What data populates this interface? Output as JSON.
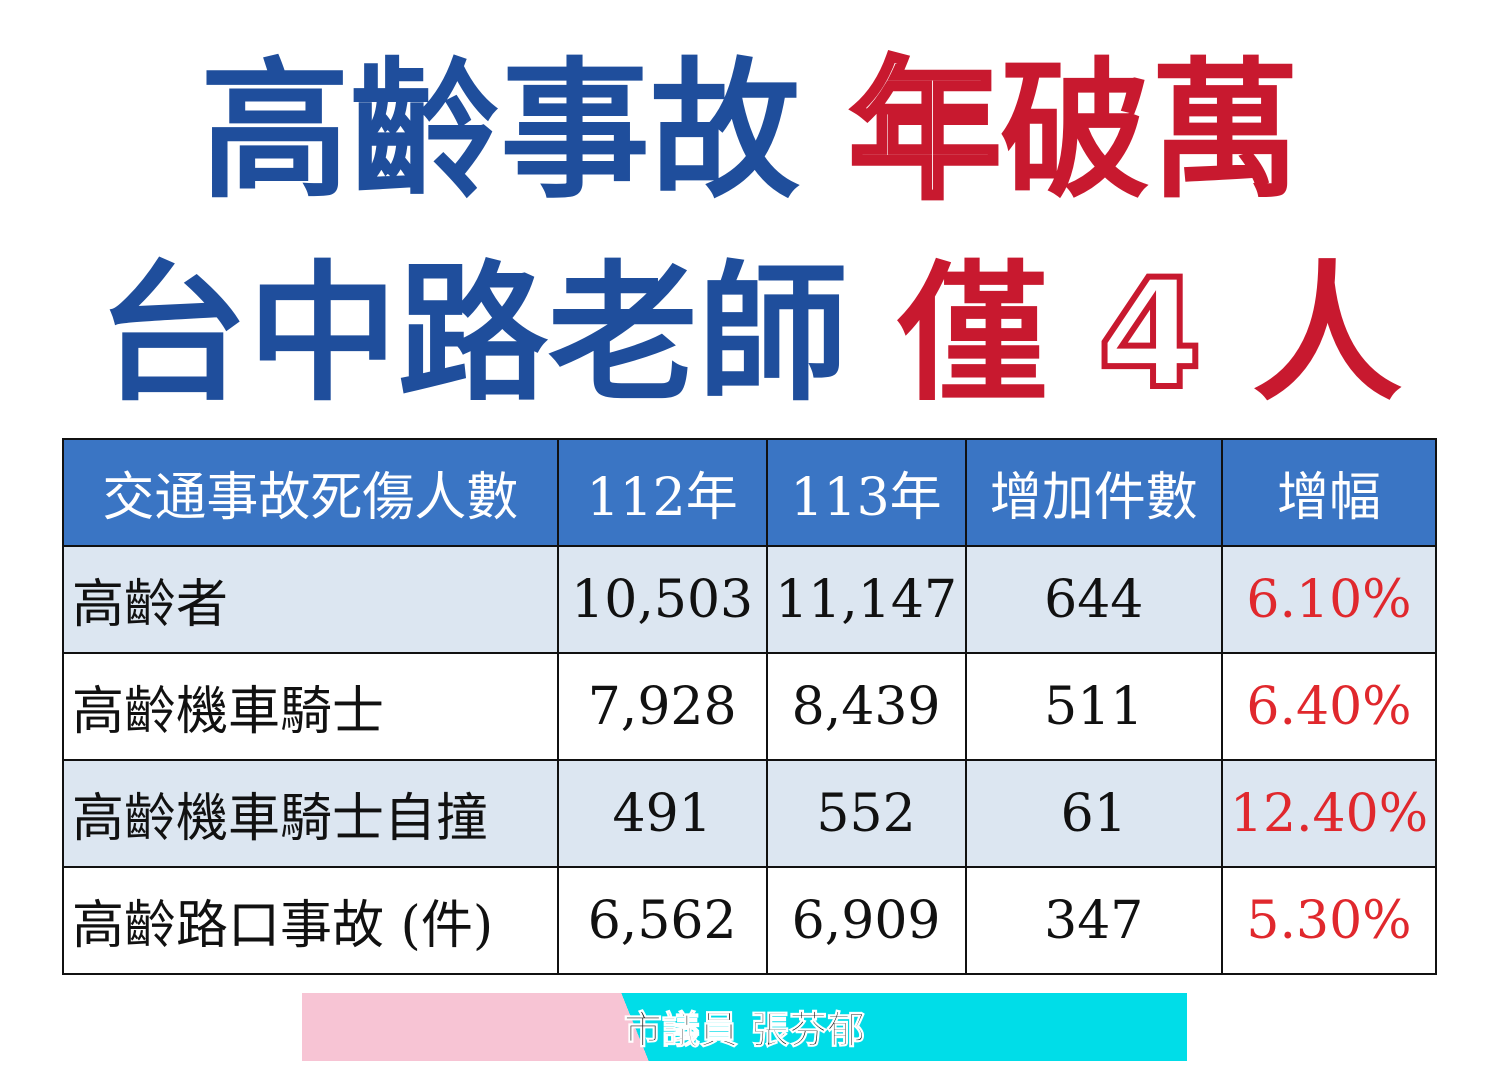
{
  "headline": {
    "line1": {
      "part1": "高齡事故",
      "outlined": "年",
      "part2": "破萬"
    },
    "line2": {
      "part1": "台中路老師",
      "part2": "僅",
      "outlined": "4",
      "part3": "人"
    }
  },
  "table": {
    "headers": [
      "交通事故死傷人數",
      "112年",
      "113年",
      "增加件數",
      "增幅"
    ],
    "rows": [
      {
        "label": "高齡者",
        "y112": "10,503",
        "y113": "11,147",
        "increase": "644",
        "rate": "6.10%"
      },
      {
        "label": "高齡機車騎士",
        "y112": "7,928",
        "y113": "8,439",
        "increase": "511",
        "rate": "6.40%"
      },
      {
        "label": "高齡機車騎士自撞",
        "y112": "491",
        "y113": "552",
        "increase": "61",
        "rate": "12.40%"
      },
      {
        "label": "高齡路口事故 (件)",
        "y112": "6,562",
        "y113": "6,909",
        "increase": "347",
        "rate": "5.30%"
      }
    ]
  },
  "footer": {
    "credit": "市議員 張芬郁"
  },
  "colors": {
    "title_blue": "#1f4e9c",
    "title_red": "#c8192f",
    "header_bg": "#3a75c4",
    "row_alt_bg": "#dce6f1",
    "rate_red": "#e0282d",
    "banner_pink": "#f7c4d4",
    "banner_cyan": "#00dde8"
  }
}
